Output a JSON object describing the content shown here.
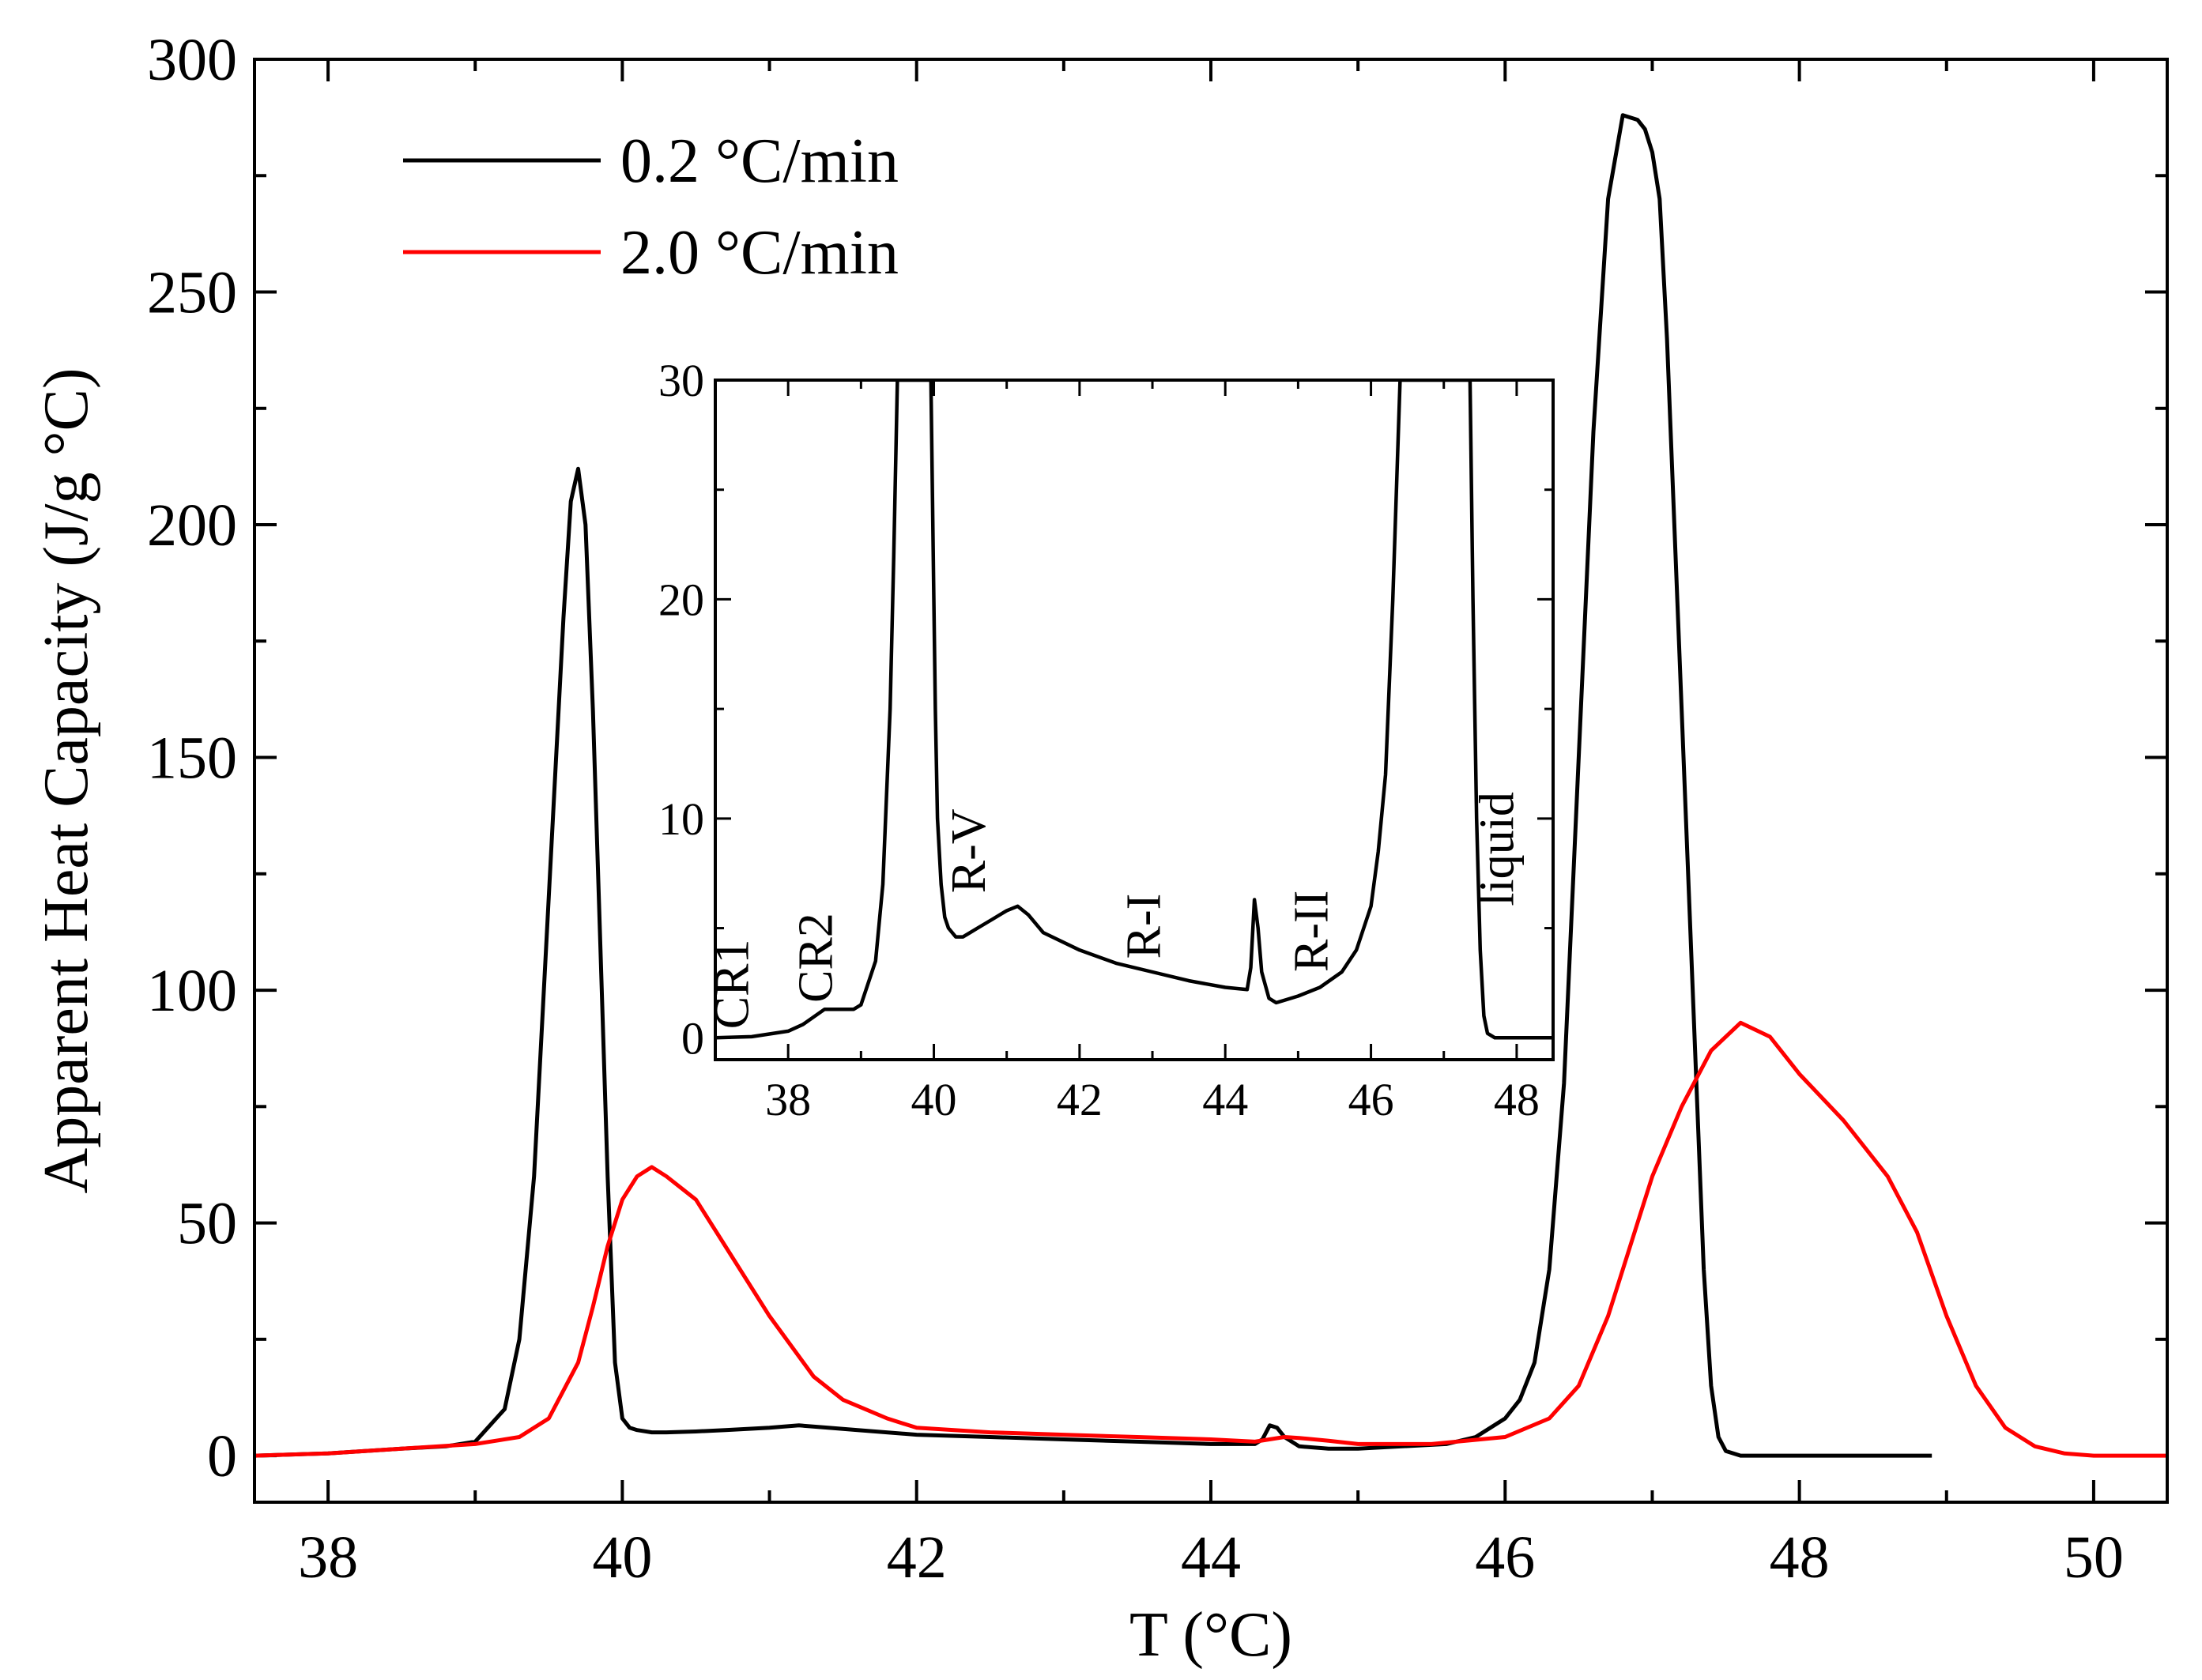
{
  "chart_data": [
    {
      "type": "line",
      "role": "main",
      "xlabel": "T (°C)",
      "ylabel": "Apparent Heat Capacity (J/g °C)",
      "xlim": [
        37.5,
        50.5
      ],
      "ylim": [
        -10,
        300
      ],
      "xticks": [
        38,
        40,
        42,
        44,
        46,
        48,
        50
      ],
      "xtick_labels": [
        "38",
        "40",
        "42",
        "44",
        "46",
        "48",
        "50"
      ],
      "yticks": [
        0,
        50,
        100,
        150,
        200,
        250,
        300
      ],
      "ytick_labels": [
        "0",
        "50",
        "100",
        "150",
        "200",
        "250",
        "300"
      ],
      "legend_position": "top-left",
      "series": [
        {
          "name": "0.2 °C/min",
          "color": "#000000",
          "x": [
            37.5,
            38,
            38.5,
            38.8,
            39.0,
            39.2,
            39.3,
            39.4,
            39.5,
            39.6,
            39.65,
            39.7,
            39.75,
            39.8,
            39.85,
            39.9,
            39.95,
            40.0,
            40.05,
            40.1,
            40.2,
            40.3,
            40.5,
            40.7,
            41.0,
            41.2,
            41.4,
            41.6,
            42.0,
            42.5,
            43.0,
            43.5,
            44.0,
            44.3,
            44.35,
            44.4,
            44.45,
            44.5,
            44.6,
            44.8,
            45.0,
            45.3,
            45.6,
            45.8,
            46.0,
            46.1,
            46.2,
            46.3,
            46.4,
            46.5,
            46.6,
            46.7,
            46.8,
            46.9,
            46.95,
            47.0,
            47.05,
            47.1,
            47.2,
            47.25,
            47.3,
            47.35,
            47.4,
            47.45,
            47.5,
            47.6,
            47.8,
            48.2,
            48.9
          ],
          "y": [
            0,
            0.5,
            1.5,
            2,
            3,
            10,
            25,
            60,
            120,
            180,
            205,
            212,
            200,
            160,
            110,
            60,
            20,
            8,
            6,
            5.5,
            5,
            5,
            5.2,
            5.5,
            6,
            6.5,
            6,
            5.5,
            4.5,
            4,
            3.5,
            3,
            2.5,
            2.5,
            3.5,
            6.5,
            6,
            4,
            2,
            1.5,
            1.5,
            2,
            2.5,
            4,
            8,
            12,
            20,
            40,
            80,
            150,
            220,
            270,
            288,
            287,
            285,
            280,
            270,
            240,
            160,
            120,
            80,
            40,
            15,
            4,
            1,
            0,
            0,
            0,
            0
          ]
        },
        {
          "name": "2.0 °C/min",
          "color": "#ff0000",
          "x": [
            37.5,
            38,
            38.5,
            39.0,
            39.3,
            39.5,
            39.7,
            39.8,
            39.9,
            40.0,
            40.1,
            40.2,
            40.3,
            40.5,
            40.7,
            41.0,
            41.3,
            41.5,
            41.8,
            42.0,
            42.5,
            43.0,
            43.5,
            44.0,
            44.3,
            44.5,
            44.6,
            44.8,
            45.0,
            45.5,
            46.0,
            46.3,
            46.5,
            46.7,
            46.9,
            47.0,
            47.2,
            47.4,
            47.6,
            47.8,
            48.0,
            48.3,
            48.6,
            48.8,
            49.0,
            49.2,
            49.4,
            49.6,
            49.8,
            50.0,
            50.5
          ],
          "y": [
            0,
            0.5,
            1.5,
            2.5,
            4,
            8,
            20,
            32,
            45,
            55,
            60,
            62,
            60,
            55,
            45,
            30,
            17,
            12,
            8,
            6,
            5,
            4.5,
            4,
            3.5,
            3,
            4,
            3.8,
            3.2,
            2.5,
            2.5,
            4,
            8,
            15,
            30,
            50,
            60,
            75,
            87,
            93,
            90,
            82,
            72,
            60,
            48,
            30,
            15,
            6,
            2,
            0.5,
            0,
            0
          ]
        }
      ]
    },
    {
      "type": "line",
      "role": "inset",
      "xlim": [
        37,
        48.5
      ],
      "ylim": [
        -1,
        30
      ],
      "xticks": [
        38,
        40,
        42,
        44,
        46,
        48
      ],
      "xtick_labels": [
        "38",
        "40",
        "42",
        "44",
        "46",
        "48"
      ],
      "yticks": [
        0,
        10,
        20,
        30
      ],
      "ytick_labels": [
        "0",
        "10",
        "20",
        "30"
      ],
      "annotations": [
        {
          "text": "CR1",
          "x": 37.45,
          "y": 0.4
        },
        {
          "text": "CR2",
          "x": 38.6,
          "y": 1.6
        },
        {
          "text": "R-V",
          "x": 40.7,
          "y": 6.6
        },
        {
          "text": "R-I",
          "x": 43.1,
          "y": 3.6
        },
        {
          "text": "R-II",
          "x": 45.4,
          "y": 3.0
        },
        {
          "text": "liquid",
          "x": 47.95,
          "y": 6.0
        }
      ],
      "series": [
        {
          "name": "0.2 °C/min",
          "color": "#000000",
          "x": [
            37.0,
            37.5,
            38.0,
            38.2,
            38.5,
            38.8,
            38.9,
            39.0,
            39.2,
            39.3,
            39.4,
            39.45,
            39.5,
            39.96,
            40.0,
            40.02,
            40.05,
            40.1,
            40.15,
            40.2,
            40.3,
            40.4,
            40.5,
            40.6,
            40.8,
            41.0,
            41.15,
            41.3,
            41.5,
            42.0,
            42.5,
            43.0,
            43.5,
            44.0,
            44.3,
            44.35,
            44.4,
            44.45,
            44.5,
            44.6,
            44.7,
            44.8,
            45.0,
            45.3,
            45.6,
            45.8,
            46.0,
            46.1,
            46.2,
            46.3,
            46.35,
            46.4,
            47.36,
            47.4,
            47.45,
            47.5,
            47.55,
            47.6,
            47.7,
            48.0,
            48.5
          ],
          "y": [
            0,
            0.05,
            0.3,
            0.6,
            1.3,
            1.3,
            1.3,
            1.5,
            3.5,
            7,
            15,
            22,
            30,
            30,
            20,
            15,
            10,
            7,
            5.5,
            5,
            4.6,
            4.6,
            4.8,
            5.0,
            5.4,
            5.8,
            6.0,
            5.6,
            4.8,
            4.0,
            3.4,
            3.0,
            2.6,
            2.3,
            2.2,
            3.2,
            6.3,
            5.0,
            3.0,
            1.8,
            1.6,
            1.7,
            1.9,
            2.3,
            3.0,
            4.0,
            6.0,
            8.5,
            12,
            20,
            25,
            30,
            30,
            20,
            10,
            4,
            1,
            0.2,
            0,
            0,
            0
          ]
        }
      ]
    }
  ],
  "legend": {
    "entries": [
      {
        "label": "0.2 °C/min",
        "color": "#000000"
      },
      {
        "label": "2.0 °C/min",
        "color": "#ff0000"
      }
    ]
  }
}
